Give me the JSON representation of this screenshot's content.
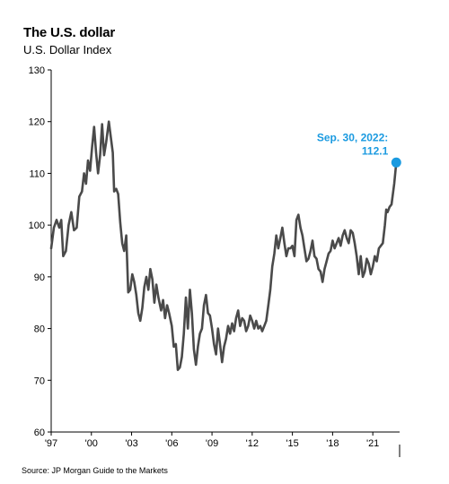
{
  "title": "The U.S. dollar",
  "subtitle": "U.S. Dollar Index",
  "source": "Source: JP Morgan Guide to the Markets",
  "colors": {
    "line": "#4a4a4a",
    "accent": "#1a9ae0",
    "axis": "#000000"
  },
  "chart_data": {
    "type": "line",
    "title": "The U.S. dollar",
    "subtitle": "U.S. Dollar Index",
    "xlabel": "",
    "ylabel": "",
    "ylim": [
      60,
      130
    ],
    "xlim": [
      1997.0,
      2023.0
    ],
    "yticks": [
      60,
      70,
      80,
      90,
      100,
      110,
      120,
      130
    ],
    "xticks": [
      {
        "x": 1997,
        "label": "'97"
      },
      {
        "x": 2000,
        "label": "'00"
      },
      {
        "x": 2003,
        "label": "'03"
      },
      {
        "x": 2006,
        "label": "'06"
      },
      {
        "x": 2009,
        "label": "'09"
      },
      {
        "x": 2012,
        "label": "'12"
      },
      {
        "x": 2015,
        "label": "'15"
      },
      {
        "x": 2018,
        "label": "'18"
      },
      {
        "x": 2021,
        "label": "'21"
      }
    ],
    "grid": false,
    "series": [
      {
        "points": [
          [
            1997.0,
            95.5
          ],
          [
            1997.2,
            99.5
          ],
          [
            1997.4,
            101.0
          ],
          [
            1997.6,
            99.5
          ],
          [
            1997.75,
            101.0
          ],
          [
            1997.9,
            94.0
          ],
          [
            1998.1,
            95.0
          ],
          [
            1998.3,
            100.0
          ],
          [
            1998.5,
            102.5
          ],
          [
            1998.7,
            99.0
          ],
          [
            1998.9,
            99.5
          ],
          [
            1999.1,
            105.5
          ],
          [
            1999.3,
            106.5
          ],
          [
            1999.45,
            110.0
          ],
          [
            1999.6,
            108.0
          ],
          [
            1999.75,
            112.5
          ],
          [
            1999.9,
            110.5
          ],
          [
            2000.05,
            115.0
          ],
          [
            2000.2,
            119.0
          ],
          [
            2000.35,
            114.0
          ],
          [
            2000.5,
            110.0
          ],
          [
            2000.65,
            113.5
          ],
          [
            2000.8,
            119.5
          ],
          [
            2000.95,
            113.5
          ],
          [
            2001.1,
            116.0
          ],
          [
            2001.3,
            120.0
          ],
          [
            2001.45,
            117.0
          ],
          [
            2001.6,
            114.0
          ],
          [
            2001.7,
            106.5
          ],
          [
            2001.85,
            107.0
          ],
          [
            2002.0,
            106.0
          ],
          [
            2002.15,
            100.5
          ],
          [
            2002.3,
            96.5
          ],
          [
            2002.45,
            95.0
          ],
          [
            2002.6,
            98.0
          ],
          [
            2002.75,
            87.0
          ],
          [
            2002.9,
            87.5
          ],
          [
            2003.05,
            90.5
          ],
          [
            2003.2,
            89.0
          ],
          [
            2003.35,
            86.5
          ],
          [
            2003.5,
            83.0
          ],
          [
            2003.65,
            81.5
          ],
          [
            2003.8,
            84.0
          ],
          [
            2003.95,
            88.0
          ],
          [
            2004.1,
            90.0
          ],
          [
            2004.25,
            87.5
          ],
          [
            2004.4,
            91.5
          ],
          [
            2004.55,
            89.5
          ],
          [
            2004.7,
            85.0
          ],
          [
            2004.85,
            88.5
          ],
          [
            2005.0,
            86.0
          ],
          [
            2005.2,
            83.5
          ],
          [
            2005.35,
            85.5
          ],
          [
            2005.5,
            82.0
          ],
          [
            2005.65,
            84.5
          ],
          [
            2005.8,
            83.0
          ],
          [
            2006.0,
            80.5
          ],
          [
            2006.15,
            76.5
          ],
          [
            2006.3,
            77.0
          ],
          [
            2006.45,
            72.0
          ],
          [
            2006.6,
            72.5
          ],
          [
            2006.75,
            74.5
          ],
          [
            2006.9,
            79.0
          ],
          [
            2007.05,
            86.0
          ],
          [
            2007.2,
            80.0
          ],
          [
            2007.35,
            87.5
          ],
          [
            2007.5,
            83.0
          ],
          [
            2007.65,
            76.0
          ],
          [
            2007.8,
            73.0
          ],
          [
            2007.95,
            76.5
          ],
          [
            2008.1,
            79.0
          ],
          [
            2008.25,
            80.0
          ],
          [
            2008.4,
            84.5
          ],
          [
            2008.55,
            86.5
          ],
          [
            2008.7,
            83.0
          ],
          [
            2008.85,
            82.5
          ],
          [
            2009.0,
            80.0
          ],
          [
            2009.15,
            77.0
          ],
          [
            2009.3,
            75.0
          ],
          [
            2009.45,
            80.0
          ],
          [
            2009.6,
            77.0
          ],
          [
            2009.75,
            73.5
          ],
          [
            2009.9,
            76.5
          ],
          [
            2010.05,
            78.0
          ],
          [
            2010.2,
            80.5
          ],
          [
            2010.35,
            79.0
          ],
          [
            2010.5,
            81.0
          ],
          [
            2010.65,
            79.5
          ],
          [
            2010.8,
            82.0
          ],
          [
            2010.95,
            83.5
          ],
          [
            2011.1,
            80.5
          ],
          [
            2011.25,
            82.0
          ],
          [
            2011.4,
            81.5
          ],
          [
            2011.55,
            79.5
          ],
          [
            2011.7,
            80.5
          ],
          [
            2011.85,
            82.5
          ],
          [
            2012.0,
            81.5
          ],
          [
            2012.15,
            80.0
          ],
          [
            2012.3,
            81.5
          ],
          [
            2012.45,
            80.0
          ],
          [
            2012.6,
            80.5
          ],
          [
            2012.75,
            79.5
          ],
          [
            2012.9,
            80.5
          ],
          [
            2013.05,
            81.5
          ],
          [
            2013.2,
            84.5
          ],
          [
            2013.35,
            87.5
          ],
          [
            2013.5,
            92.0
          ],
          [
            2013.65,
            94.5
          ],
          [
            2013.8,
            98.0
          ],
          [
            2013.95,
            95.5
          ],
          [
            2014.1,
            97.5
          ],
          [
            2014.25,
            99.5
          ],
          [
            2014.4,
            96.5
          ],
          [
            2014.55,
            94.0
          ],
          [
            2014.7,
            95.5
          ],
          [
            2014.85,
            95.5
          ],
          [
            2015.0,
            96.0
          ],
          [
            2015.15,
            94.0
          ],
          [
            2015.3,
            101.0
          ],
          [
            2015.45,
            102.0
          ],
          [
            2015.6,
            99.5
          ],
          [
            2015.75,
            98.0
          ],
          [
            2015.9,
            95.5
          ],
          [
            2016.05,
            93.0
          ],
          [
            2016.2,
            93.5
          ],
          [
            2016.35,
            95.0
          ],
          [
            2016.5,
            97.0
          ],
          [
            2016.65,
            94.0
          ],
          [
            2016.8,
            93.5
          ],
          [
            2016.95,
            91.5
          ],
          [
            2017.1,
            91.0
          ],
          [
            2017.25,
            89.0
          ],
          [
            2017.4,
            91.5
          ],
          [
            2017.55,
            93.0
          ],
          [
            2017.7,
            94.5
          ],
          [
            2017.85,
            95.0
          ],
          [
            2018.0,
            97.0
          ],
          [
            2018.15,
            95.5
          ],
          [
            2018.3,
            96.5
          ],
          [
            2018.45,
            97.5
          ],
          [
            2018.6,
            96.0
          ],
          [
            2018.75,
            98.0
          ],
          [
            2018.9,
            99.0
          ],
          [
            2019.05,
            97.5
          ],
          [
            2019.2,
            96.5
          ],
          [
            2019.35,
            99.0
          ],
          [
            2019.5,
            98.5
          ],
          [
            2019.65,
            96.5
          ],
          [
            2019.8,
            94.0
          ],
          [
            2019.95,
            90.5
          ],
          [
            2020.1,
            94.0
          ],
          [
            2020.25,
            90.0
          ],
          [
            2020.4,
            91.0
          ],
          [
            2020.55,
            93.5
          ],
          [
            2020.7,
            92.5
          ],
          [
            2020.85,
            90.5
          ],
          [
            2021.0,
            92.0
          ],
          [
            2021.15,
            94.0
          ],
          [
            2021.3,
            93.0
          ],
          [
            2021.45,
            95.5
          ],
          [
            2021.6,
            96.0
          ],
          [
            2021.75,
            96.5
          ],
          [
            2021.9,
            100.0
          ],
          [
            2022.0,
            103.0
          ],
          [
            2022.1,
            102.5
          ],
          [
            2022.25,
            103.5
          ],
          [
            2022.4,
            104.0
          ],
          [
            2022.5,
            106.0
          ],
          [
            2022.6,
            108.0
          ],
          [
            2022.75,
            112.1
          ]
        ]
      }
    ],
    "annotations": [
      {
        "x": 2022.75,
        "y": 112.1,
        "label_line1": "Sep. 30, 2022:",
        "label_line2": "112.1"
      }
    ]
  }
}
